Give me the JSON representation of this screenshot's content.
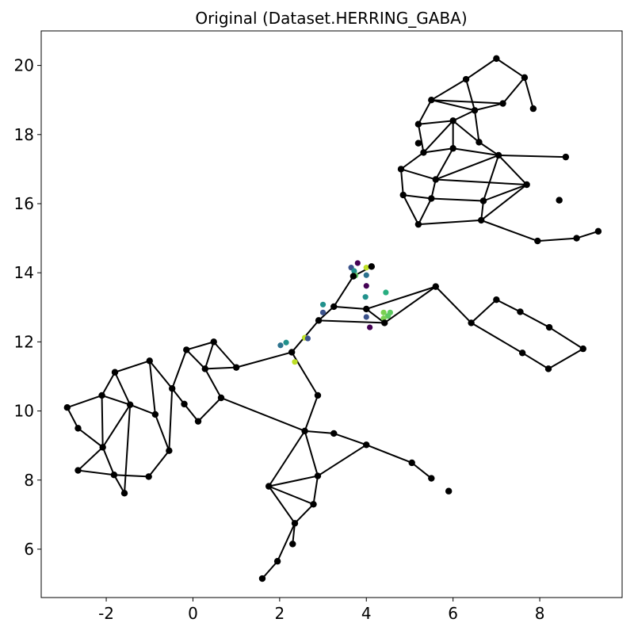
{
  "chart_data": {
    "type": "scatter",
    "title": "Original (Dataset.HERRING_GABA)",
    "xlabel": "",
    "ylabel": "",
    "xlim": [
      -3.5,
      9.9
    ],
    "ylim": [
      4.6,
      21.0
    ],
    "xticks": [
      -2,
      0,
      2,
      4,
      6,
      8
    ],
    "xtick_labels": [
      "-2",
      "0",
      "2",
      "4",
      "6",
      "8"
    ],
    "yticks": [
      6,
      8,
      10,
      12,
      14,
      16,
      18,
      20
    ],
    "ytick_labels": [
      "6",
      "8",
      "10",
      "12",
      "14",
      "16",
      "18",
      "20"
    ],
    "grid": false,
    "legend": "none",
    "colors": {
      "node": "#000000",
      "edge": "#000000",
      "frame": "#000000"
    },
    "nodes": [
      [
        -2.9,
        10.1
      ],
      [
        -2.65,
        9.5
      ],
      [
        -2.65,
        8.28
      ],
      [
        -2.1,
        10.45
      ],
      [
        -2.08,
        8.95
      ],
      [
        -1.8,
        11.12
      ],
      [
        -1.82,
        8.15
      ],
      [
        -1.58,
        7.62
      ],
      [
        -1.45,
        10.18
      ],
      [
        -1.0,
        11.45
      ],
      [
        -1.02,
        8.1
      ],
      [
        -0.87,
        9.9
      ],
      [
        -0.55,
        8.85
      ],
      [
        -0.48,
        10.65
      ],
      [
        -0.15,
        11.77
      ],
      [
        -0.2,
        10.2
      ],
      [
        0.12,
        9.7
      ],
      [
        0.28,
        11.22
      ],
      [
        0.48,
        12.0
      ],
      [
        0.65,
        10.38
      ],
      [
        1.0,
        11.26
      ],
      [
        2.28,
        11.7
      ],
      [
        2.88,
        10.45
      ],
      [
        2.58,
        9.42
      ],
      [
        3.25,
        9.35
      ],
      [
        4.0,
        9.02
      ],
      [
        5.05,
        8.5
      ],
      [
        5.5,
        8.05
      ],
      [
        5.9,
        7.68
      ],
      [
        2.88,
        8.12
      ],
      [
        1.75,
        7.82
      ],
      [
        2.78,
        7.3
      ],
      [
        2.35,
        6.75
      ],
      [
        2.3,
        6.15
      ],
      [
        1.95,
        5.65
      ],
      [
        1.6,
        5.15
      ],
      [
        2.9,
        12.62
      ],
      [
        3.25,
        13.02
      ],
      [
        3.7,
        13.9
      ],
      [
        4.12,
        14.18
      ],
      [
        4.0,
        12.95
      ],
      [
        4.42,
        12.55
      ],
      [
        5.6,
        13.6
      ],
      [
        6.42,
        12.55
      ],
      [
        7.0,
        13.22
      ],
      [
        7.55,
        12.87
      ],
      [
        8.22,
        12.42
      ],
      [
        9.0,
        11.8
      ],
      [
        7.6,
        11.68
      ],
      [
        8.2,
        11.22
      ],
      [
        7.0,
        20.2
      ],
      [
        7.65,
        19.65
      ],
      [
        6.3,
        19.6
      ],
      [
        5.5,
        19.0
      ],
      [
        7.15,
        18.9
      ],
      [
        7.85,
        18.75
      ],
      [
        6.5,
        18.7
      ],
      [
        5.2,
        18.3
      ],
      [
        6.0,
        18.4
      ],
      [
        5.2,
        17.75
      ],
      [
        6.6,
        17.78
      ],
      [
        5.32,
        17.48
      ],
      [
        6.0,
        17.6
      ],
      [
        7.05,
        17.4
      ],
      [
        8.6,
        17.35
      ],
      [
        4.8,
        17.0
      ],
      [
        5.6,
        16.7
      ],
      [
        7.7,
        16.55
      ],
      [
        4.85,
        16.25
      ],
      [
        5.5,
        16.15
      ],
      [
        6.7,
        16.08
      ],
      [
        8.45,
        16.1
      ],
      [
        5.2,
        15.4
      ],
      [
        6.65,
        15.52
      ],
      [
        7.95,
        14.92
      ],
      [
        8.85,
        15.0
      ],
      [
        9.35,
        15.2
      ]
    ],
    "edges": [
      [
        0,
        1
      ],
      [
        0,
        3
      ],
      [
        1,
        4
      ],
      [
        3,
        4
      ],
      [
        3,
        5
      ],
      [
        3,
        8
      ],
      [
        5,
        8
      ],
      [
        5,
        9
      ],
      [
        4,
        8
      ],
      [
        4,
        6
      ],
      [
        2,
        4
      ],
      [
        2,
        6
      ],
      [
        6,
        7
      ],
      [
        6,
        10
      ],
      [
        7,
        8
      ],
      [
        10,
        12
      ],
      [
        8,
        11
      ],
      [
        11,
        12
      ],
      [
        9,
        11
      ],
      [
        9,
        13
      ],
      [
        13,
        12
      ],
      [
        13,
        14
      ],
      [
        13,
        15
      ],
      [
        15,
        16
      ],
      [
        14,
        17
      ],
      [
        14,
        18
      ],
      [
        18,
        17
      ],
      [
        17,
        19
      ],
      [
        18,
        20
      ],
      [
        17,
        20
      ],
      [
        16,
        19
      ],
      [
        19,
        23
      ],
      [
        20,
        21
      ],
      [
        21,
        22
      ],
      [
        22,
        23
      ],
      [
        23,
        24
      ],
      [
        24,
        25
      ],
      [
        25,
        26
      ],
      [
        26,
        27
      ],
      [
        25,
        29
      ],
      [
        23,
        29
      ],
      [
        23,
        30
      ],
      [
        29,
        30
      ],
      [
        30,
        31
      ],
      [
        29,
        31
      ],
      [
        30,
        32
      ],
      [
        31,
        32
      ],
      [
        32,
        33
      ],
      [
        32,
        34
      ],
      [
        34,
        35
      ],
      [
        21,
        36
      ],
      [
        36,
        37
      ],
      [
        37,
        38
      ],
      [
        38,
        39
      ],
      [
        37,
        40
      ],
      [
        36,
        41
      ],
      [
        40,
        41
      ],
      [
        40,
        42
      ],
      [
        41,
        42
      ],
      [
        42,
        43
      ],
      [
        43,
        44
      ],
      [
        44,
        45
      ],
      [
        45,
        46
      ],
      [
        46,
        47
      ],
      [
        43,
        48
      ],
      [
        48,
        49
      ],
      [
        49,
        47
      ],
      [
        50,
        51
      ],
      [
        50,
        52
      ],
      [
        51,
        54
      ],
      [
        51,
        55
      ],
      [
        52,
        53
      ],
      [
        52,
        56
      ],
      [
        53,
        54
      ],
      [
        53,
        57
      ],
      [
        53,
        56
      ],
      [
        54,
        56
      ],
      [
        56,
        58
      ],
      [
        57,
        58
      ],
      [
        58,
        60
      ],
      [
        56,
        60
      ],
      [
        57,
        61
      ],
      [
        58,
        61
      ],
      [
        61,
        62
      ],
      [
        58,
        62
      ],
      [
        62,
        63
      ],
      [
        60,
        63
      ],
      [
        63,
        64
      ],
      [
        61,
        65
      ],
      [
        65,
        66
      ],
      [
        62,
        66
      ],
      [
        66,
        63
      ],
      [
        63,
        67
      ],
      [
        66,
        67
      ],
      [
        65,
        68
      ],
      [
        68,
        69
      ],
      [
        66,
        69
      ],
      [
        69,
        70
      ],
      [
        67,
        70
      ],
      [
        63,
        70
      ],
      [
        69,
        72
      ],
      [
        68,
        72
      ],
      [
        70,
        73
      ],
      [
        72,
        73
      ],
      [
        67,
        73
      ],
      [
        73,
        74
      ],
      [
        74,
        75
      ],
      [
        75,
        76
      ]
    ],
    "colored_points": [
      {
        "x": 3.65,
        "y": 14.15,
        "color": "#3b528b"
      },
      {
        "x": 3.72,
        "y": 14.05,
        "color": "#21918c"
      },
      {
        "x": 3.8,
        "y": 14.28,
        "color": "#440154"
      },
      {
        "x": 4.0,
        "y": 14.15,
        "color": "#bddf26"
      },
      {
        "x": 3.75,
        "y": 13.92,
        "color": "#5ec962"
      },
      {
        "x": 4.0,
        "y": 13.93,
        "color": "#2c728e"
      },
      {
        "x": 4.0,
        "y": 13.62,
        "color": "#440154"
      },
      {
        "x": 3.98,
        "y": 13.3,
        "color": "#21918c"
      },
      {
        "x": 4.45,
        "y": 13.43,
        "color": "#28ae80"
      },
      {
        "x": 3.0,
        "y": 13.08,
        "color": "#21918c"
      },
      {
        "x": 3.0,
        "y": 12.85,
        "color": "#3b528b"
      },
      {
        "x": 4.4,
        "y": 12.85,
        "color": "#7ad151"
      },
      {
        "x": 4.55,
        "y": 12.85,
        "color": "#5ec962"
      },
      {
        "x": 4.5,
        "y": 12.75,
        "color": "#5ec962"
      },
      {
        "x": 4.4,
        "y": 12.68,
        "color": "#7ad151"
      },
      {
        "x": 4.0,
        "y": 12.72,
        "color": "#3b528b"
      },
      {
        "x": 4.08,
        "y": 12.42,
        "color": "#440154"
      },
      {
        "x": 2.58,
        "y": 12.12,
        "color": "#bddf26"
      },
      {
        "x": 2.65,
        "y": 12.1,
        "color": "#3b528b"
      },
      {
        "x": 2.15,
        "y": 11.98,
        "color": "#21918c"
      },
      {
        "x": 2.02,
        "y": 11.9,
        "color": "#2c728e"
      },
      {
        "x": 2.35,
        "y": 11.42,
        "color": "#bddf26"
      }
    ]
  }
}
